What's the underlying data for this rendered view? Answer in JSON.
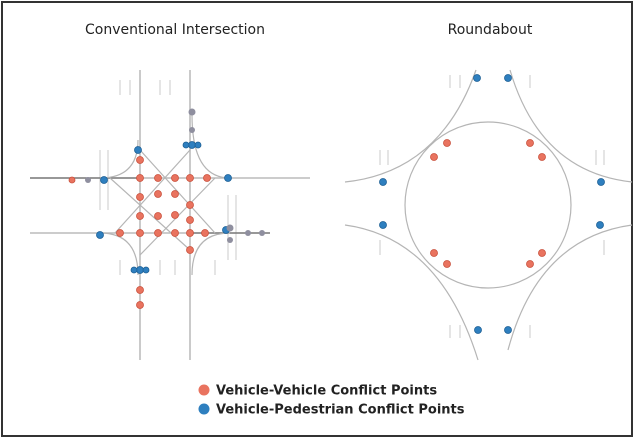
{
  "panels": [
    {
      "title": "Conventional Intersection"
    },
    {
      "title": "Roundabout"
    }
  ],
  "legend": [
    {
      "label": "Vehicle-Vehicle Conflict Points"
    },
    {
      "label": "Vehicle-Pedestrian Conflict Points"
    }
  ]
}
